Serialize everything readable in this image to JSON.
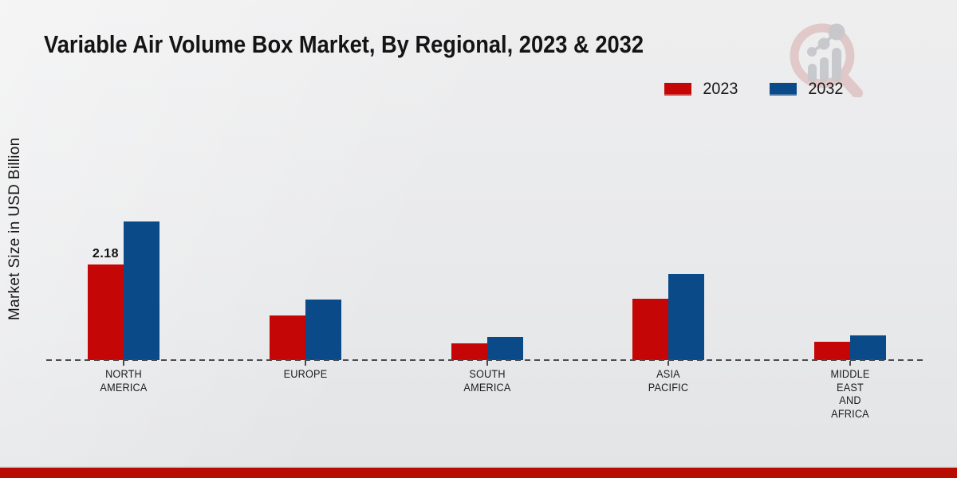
{
  "title": "Variable Air Volume Box Market, By Regional, 2023 & 2032",
  "y_axis_label": "Market Size in USD Billion",
  "legend": [
    {
      "label": "2023",
      "color": "#c40606"
    },
    {
      "label": "2032",
      "color": "#0b4a88"
    }
  ],
  "annotation": {
    "text": "2.18",
    "series_index": 0,
    "category_index": 0
  },
  "colors": {
    "series_2023": "#c40606",
    "series_2032": "#0b4a88",
    "footer_band": "#b80c02",
    "axis_dash": "#4b4b4d",
    "background": "#e9eaec"
  },
  "watermark_icon": "magnifier-growth-chart-logo",
  "chart_data": {
    "type": "bar",
    "title": "Variable Air Volume Box Market, By Regional, 2023 & 2032",
    "xlabel": "",
    "ylabel": "Market Size in USD Billion",
    "categories": [
      "NORTH AMERICA",
      "EUROPE",
      "SOUTH AMERICA",
      "ASIA PACIFIC",
      "MIDDLE EAST AND AFRICA"
    ],
    "category_lines": [
      [
        "NORTH",
        "AMERICA"
      ],
      [
        "EUROPE"
      ],
      [
        "SOUTH",
        "AMERICA"
      ],
      [
        "ASIA",
        "PACIFIC"
      ],
      [
        "MIDDLE",
        "EAST",
        "AND",
        "AFRICA"
      ]
    ],
    "series": [
      {
        "name": "2023",
        "color": "#c40606",
        "values": [
          2.18,
          1.02,
          0.38,
          1.4,
          0.41
        ]
      },
      {
        "name": "2032",
        "color": "#0b4a88",
        "values": [
          3.16,
          1.39,
          0.53,
          1.96,
          0.56
        ]
      }
    ],
    "data_labels": [
      {
        "series": "2023",
        "category": "NORTH AMERICA",
        "value": "2.18"
      }
    ],
    "ylim": [
      0,
      3.5
    ],
    "grid": false,
    "legend_position": "top-right",
    "baseline_style": "dashed"
  }
}
